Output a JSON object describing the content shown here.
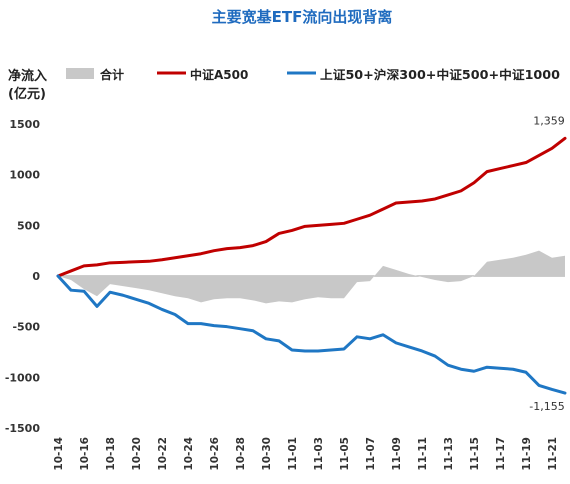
{
  "chart_data": {
    "type": "line",
    "title": "主要宽基ETF流向出现背离",
    "ylabel_line1": "净流入",
    "ylabel_line2": "(亿元)",
    "ylim": [
      -1500,
      1500
    ],
    "yticks": [
      1500,
      1000,
      500,
      0,
      -500,
      -1000,
      -1500
    ],
    "ytick_labels": [
      "1500",
      "1000",
      "500",
      "0",
      "-500",
      "-1000",
      "-1500"
    ],
    "x_tick_labels": [
      "10-14",
      "10-16",
      "10-18",
      "10-20",
      "10-22",
      "10-24",
      "10-26",
      "10-28",
      "10-30",
      "11-01",
      "11-03",
      "11-05",
      "11-07",
      "11-09",
      "11-11",
      "11-13",
      "11-15",
      "11-17",
      "11-19",
      "11-21"
    ],
    "x": [
      "10-14",
      "10-15",
      "10-16",
      "10-17",
      "10-18",
      "10-19",
      "10-20",
      "10-21",
      "10-22",
      "10-23",
      "10-24",
      "10-25",
      "10-26",
      "10-27",
      "10-28",
      "10-29",
      "10-30",
      "10-31",
      "11-01",
      "11-02",
      "11-03",
      "11-04",
      "11-05",
      "11-06",
      "11-07",
      "11-08",
      "11-09",
      "11-10",
      "11-11",
      "11-12",
      "11-13",
      "11-14",
      "11-15",
      "11-16",
      "11-17",
      "11-18",
      "11-19",
      "11-20",
      "11-21",
      "11-22"
    ],
    "series": [
      {
        "name": "合计",
        "kind": "area",
        "color": "#c8c8c8",
        "values": [
          0,
          -40,
          -130,
          -200,
          -80,
          -100,
          -120,
          -140,
          -170,
          -200,
          -220,
          -260,
          -230,
          -220,
          -220,
          -240,
          -270,
          -250,
          -260,
          -230,
          -210,
          -220,
          -220,
          -60,
          -50,
          100,
          60,
          20,
          -10,
          -40,
          -60,
          -50,
          0,
          140,
          160,
          180,
          210,
          250,
          180,
          200
        ]
      },
      {
        "name": "中证A500",
        "kind": "line",
        "color": "#c00000",
        "values": [
          0,
          50,
          100,
          110,
          130,
          135,
          140,
          145,
          160,
          180,
          200,
          220,
          250,
          270,
          280,
          300,
          340,
          420,
          450,
          490,
          500,
          510,
          520,
          560,
          600,
          660,
          720,
          730,
          740,
          760,
          800,
          840,
          920,
          1030,
          1060,
          1090,
          1120,
          1190,
          1260,
          1359
        ]
      },
      {
        "name": "上证50+沪深300+中证500+中证1000",
        "kind": "line",
        "color": "#1f77c4",
        "values": [
          0,
          -140,
          -150,
          -300,
          -160,
          -190,
          -230,
          -270,
          -330,
          -380,
          -470,
          -470,
          -490,
          -500,
          -520,
          -540,
          -620,
          -640,
          -730,
          -740,
          -740,
          -730,
          -720,
          -600,
          -620,
          -580,
          -660,
          -700,
          -740,
          -790,
          -880,
          -920,
          -940,
          -900,
          -910,
          -920,
          -950,
          -1080,
          -1120,
          -1155
        ]
      }
    ],
    "data_labels": [
      "1,359",
      "-1,155"
    ],
    "legend_position": "top",
    "grid": false
  }
}
